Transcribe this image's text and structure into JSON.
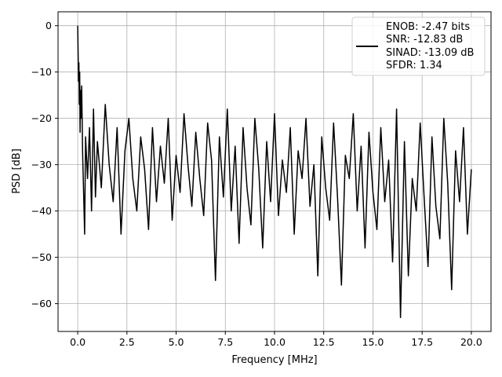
{
  "chart_data": {
    "type": "line",
    "xlabel": "Frequency [MHz]",
    "ylabel": "PSD [dB]",
    "xlim": [
      -1,
      21
    ],
    "ylim": [
      -66,
      3
    ],
    "xticks": [
      0,
      2.5,
      5,
      7.5,
      10,
      12.5,
      15,
      17.5,
      20
    ],
    "xtick_labels": [
      "0.0",
      "2.5",
      "5.0",
      "7.5",
      "10.0",
      "12.5",
      "15.0",
      "17.5",
      "20.0"
    ],
    "yticks": [
      0,
      -10,
      -20,
      -30,
      -40,
      -50,
      -60
    ],
    "ytick_labels": [
      "0",
      "−10",
      "−20",
      "−30",
      "−40",
      "−50",
      "−60"
    ],
    "grid": true,
    "legend_position": "top-right",
    "line_color": "#000000",
    "series": [
      {
        "x": [
          0,
          0.02,
          0.04,
          0.06,
          0.08,
          0.1,
          0.12,
          0.14,
          0.16,
          0.2,
          0.25,
          0.3,
          0.35,
          0.4,
          0.5,
          0.6,
          0.7,
          0.8,
          0.9,
          1.0,
          1.2,
          1.4,
          1.6,
          1.8,
          2.0,
          2.2,
          2.4,
          2.6,
          2.8,
          3.0,
          3.2,
          3.4,
          3.6,
          3.8,
          4.0,
          4.2,
          4.4,
          4.6,
          4.8,
          5.0,
          5.2,
          5.4,
          5.6,
          5.8,
          6.0,
          6.2,
          6.4,
          6.6,
          6.8,
          7.0,
          7.2,
          7.4,
          7.6,
          7.8,
          8.0,
          8.2,
          8.4,
          8.6,
          8.8,
          9.0,
          9.2,
          9.4,
          9.6,
          9.8,
          10.0,
          10.2,
          10.4,
          10.6,
          10.8,
          11.0,
          11.2,
          11.4,
          11.6,
          11.8,
          12.0,
          12.2,
          12.4,
          12.6,
          12.8,
          13.0,
          13.2,
          13.4,
          13.6,
          13.8,
          14.0,
          14.2,
          14.4,
          14.6,
          14.8,
          15.0,
          15.2,
          15.4,
          15.6,
          15.8,
          16.0,
          16.2,
          16.4,
          16.6,
          16.8,
          17.0,
          17.2,
          17.4,
          17.6,
          17.8,
          18.0,
          18.2,
          18.4,
          18.6,
          18.8,
          19.0,
          19.2,
          19.4,
          19.6,
          19.8,
          20.0
        ],
        "y": [
          0,
          -6,
          -12,
          -8,
          -17,
          -10,
          -23,
          -14,
          -20,
          -13,
          -28,
          -36,
          -45,
          -24,
          -33,
          -22,
          -40,
          -18,
          -37,
          -25,
          -35,
          -17,
          -30,
          -38,
          -22,
          -45,
          -27,
          -20,
          -33,
          -40,
          -24,
          -31,
          -44,
          -22,
          -38,
          -26,
          -34,
          -20,
          -42,
          -28,
          -36,
          -19,
          -30,
          -39,
          -23,
          -33,
          -41,
          -21,
          -29,
          -55,
          -24,
          -37,
          -18,
          -40,
          -26,
          -47,
          -22,
          -35,
          -43,
          -20,
          -31,
          -48,
          -25,
          -38,
          -19,
          -41,
          -29,
          -36,
          -22,
          -45,
          -27,
          -33,
          -20,
          -39,
          -30,
          -54,
          -24,
          -35,
          -42,
          -21,
          -37,
          -56,
          -28,
          -33,
          -19,
          -40,
          -26,
          -48,
          -23,
          -36,
          -44,
          -22,
          -38,
          -29,
          -51,
          -18,
          -63,
          -25,
          -54,
          -33,
          -40,
          -21,
          -37,
          -52,
          -24,
          -39,
          -46,
          -20,
          -34,
          -57,
          -27,
          -38,
          -22,
          -45,
          -31
        ]
      }
    ],
    "legend": {
      "entries": [
        "ENOB: -2.47 bits",
        "SNR: -12.83 dB",
        "SINAD: -13.09 dB",
        "SFDR: 1.34"
      ]
    }
  }
}
